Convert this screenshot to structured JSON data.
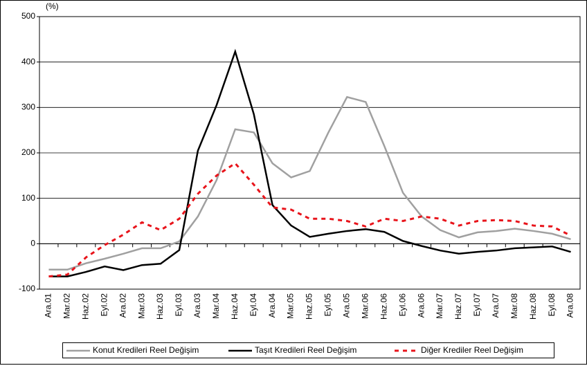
{
  "chart_data": {
    "type": "line",
    "y_label": "(%)",
    "categories": [
      "Ara.01",
      "Mar.02",
      "Haz.02",
      "Eyl.02",
      "Ara.02",
      "Mar.03",
      "Haz.03",
      "Eyl.03",
      "Ara.03",
      "Mar.04",
      "Haz.04",
      "Eyl.04",
      "Ara.04",
      "Mar.05",
      "Haz.05",
      "Eyl.05",
      "Ara.05",
      "Mar.06",
      "Haz.06",
      "Eyl.06",
      "Ara.06",
      "Mar.07",
      "Haz.07",
      "Eyl.07",
      "Ara.07",
      "Mar.08",
      "Haz.08",
      "Eyl.08",
      "Ara.08"
    ],
    "series": [
      {
        "name": "Konut Kredileri Reel Değişim",
        "color": "#a0a0a0",
        "dash": false,
        "values": [
          -57,
          -57,
          -43,
          -33,
          -22,
          -10,
          -10,
          5,
          60,
          140,
          252,
          245,
          177,
          146,
          160,
          245,
          323,
          312,
          215,
          112,
          60,
          30,
          14,
          25,
          28,
          33,
          28,
          22,
          10
        ]
      },
      {
        "name": "Taşıt Kredileri Reel Değişim",
        "color": "#000000",
        "dash": false,
        "values": [
          -72,
          -72,
          -62,
          -50,
          -58,
          -47,
          -44,
          -14,
          205,
          305,
          423,
          285,
          85,
          40,
          15,
          22,
          28,
          32,
          26,
          6,
          -5,
          -15,
          -22,
          -18,
          -15,
          -10,
          -8,
          -6,
          -18
        ]
      },
      {
        "name": "Diğer Krediler Reel Değişim",
        "color": "#e8141b",
        "dash": true,
        "values": [
          -72,
          -68,
          -30,
          -3,
          20,
          47,
          30,
          55,
          110,
          150,
          177,
          130,
          80,
          75,
          55,
          55,
          50,
          38,
          55,
          50,
          60,
          55,
          40,
          50,
          52,
          50,
          40,
          38,
          18
        ]
      }
    ],
    "ylim": [
      -100,
      500
    ],
    "yticks": [
      -100,
      0,
      100,
      200,
      300,
      400,
      500
    ],
    "grid": true
  }
}
